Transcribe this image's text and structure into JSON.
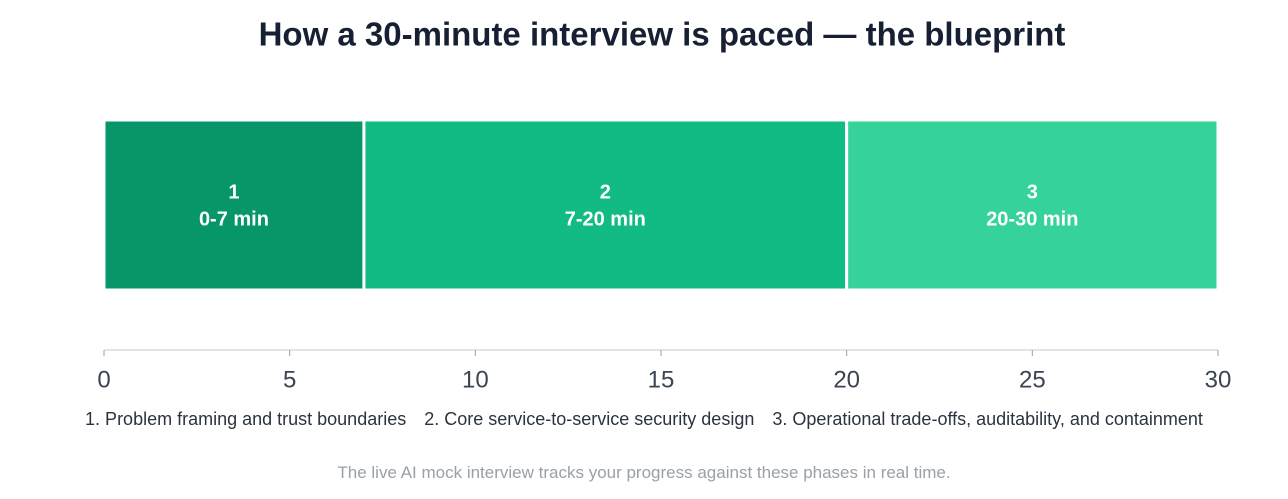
{
  "chart_data": {
    "type": "timeline",
    "title": "How a 30-minute interview is paced — the blueprint",
    "segments": [
      {
        "name": "1",
        "label": "0-7 min",
        "start": 0,
        "end": 7,
        "color": "#079669"
      },
      {
        "name": "2",
        "label": "7-20 min",
        "start": 7,
        "end": 20,
        "color": "#12bb83"
      },
      {
        "name": "3",
        "label": "20-30 min",
        "start": 20,
        "end": 30,
        "color": "#35d399"
      }
    ],
    "legend": [
      "1. Problem framing and trust boundaries",
      "2. Core service-to-service security design",
      "3. Operational trade-offs, auditability, and containment"
    ],
    "xlim": [
      0,
      30
    ],
    "xticks": [
      0,
      5,
      10,
      15,
      20,
      25,
      30
    ],
    "note": "The live AI mock interview tracks your progress against these phases in real time."
  }
}
